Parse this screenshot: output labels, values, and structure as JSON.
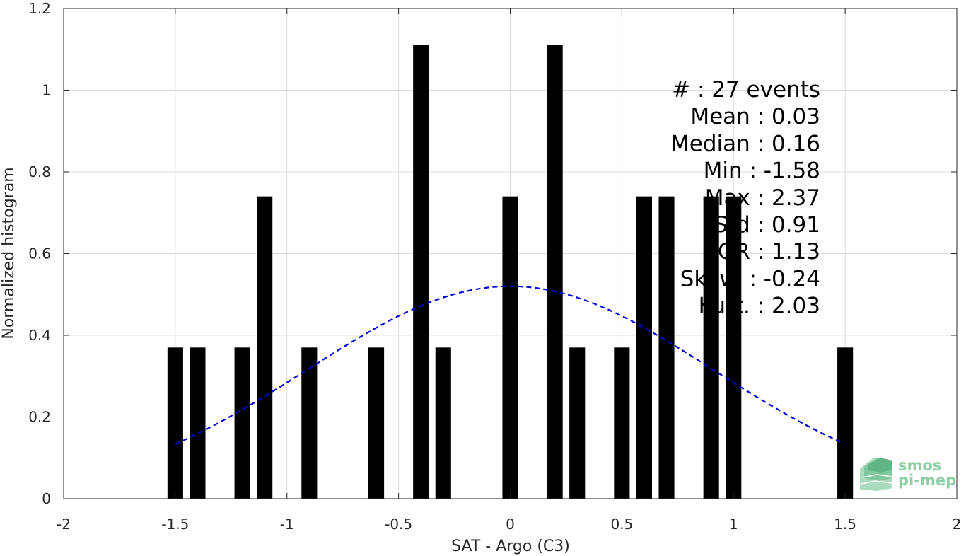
{
  "chart_data": {
    "type": "bar",
    "xlabel": "SAT - Argo (C3)",
    "ylabel": "Normalized histogram",
    "xlim": [
      -2,
      2
    ],
    "ylim": [
      0,
      1.2
    ],
    "xticks": [
      -2,
      -1.5,
      -1,
      -0.5,
      0,
      0.5,
      1,
      1.5,
      2
    ],
    "xtick_labels": [
      "-2",
      "-1.5",
      "-1",
      "-0.5",
      "0",
      "0.5",
      "1",
      "1.5",
      "2"
    ],
    "yticks": [
      0,
      0.2,
      0.4,
      0.6,
      0.8,
      1,
      1.2
    ],
    "ytick_labels": [
      "0",
      "0.2",
      "0.4",
      "0.6",
      "0.8",
      "1",
      "1.2"
    ],
    "grid": true,
    "bar_width": 0.07,
    "bar_color": "#000000",
    "bars": [
      {
        "x": -1.5,
        "value": 0.37
      },
      {
        "x": -1.4,
        "value": 0.37
      },
      {
        "x": -1.2,
        "value": 0.37
      },
      {
        "x": -1.1,
        "value": 0.74
      },
      {
        "x": -0.9,
        "value": 0.37
      },
      {
        "x": -0.6,
        "value": 0.37
      },
      {
        "x": -0.4,
        "value": 1.11
      },
      {
        "x": -0.3,
        "value": 0.37
      },
      {
        "x": 0.0,
        "value": 0.74
      },
      {
        "x": 0.2,
        "value": 1.11
      },
      {
        "x": 0.3,
        "value": 0.37
      },
      {
        "x": 0.5,
        "value": 0.37
      },
      {
        "x": 0.6,
        "value": 0.74
      },
      {
        "x": 0.7,
        "value": 0.74
      },
      {
        "x": 0.9,
        "value": 0.74
      },
      {
        "x": 1.0,
        "value": 0.74
      },
      {
        "x": 1.5,
        "value": 0.37
      }
    ],
    "fit_curve": {
      "style": "dashed",
      "color": "#0000dd",
      "mean": 0.0,
      "peak": 0.52,
      "x_range": [
        -1.5,
        1.5
      ],
      "sigma": 0.91
    },
    "annotations": [
      "#  : 27 events",
      "Mean : 0.03",
      "Median : 0.16",
      "Min : -1.58",
      "Max : 2.37",
      "Std : 0.91",
      "IQR : 1.13",
      "Skew. : -0.24",
      "Kurt. : 2.03"
    ]
  },
  "logo": {
    "line1": "smos",
    "line2": "pi-mep",
    "color": "#8fcfa8"
  }
}
